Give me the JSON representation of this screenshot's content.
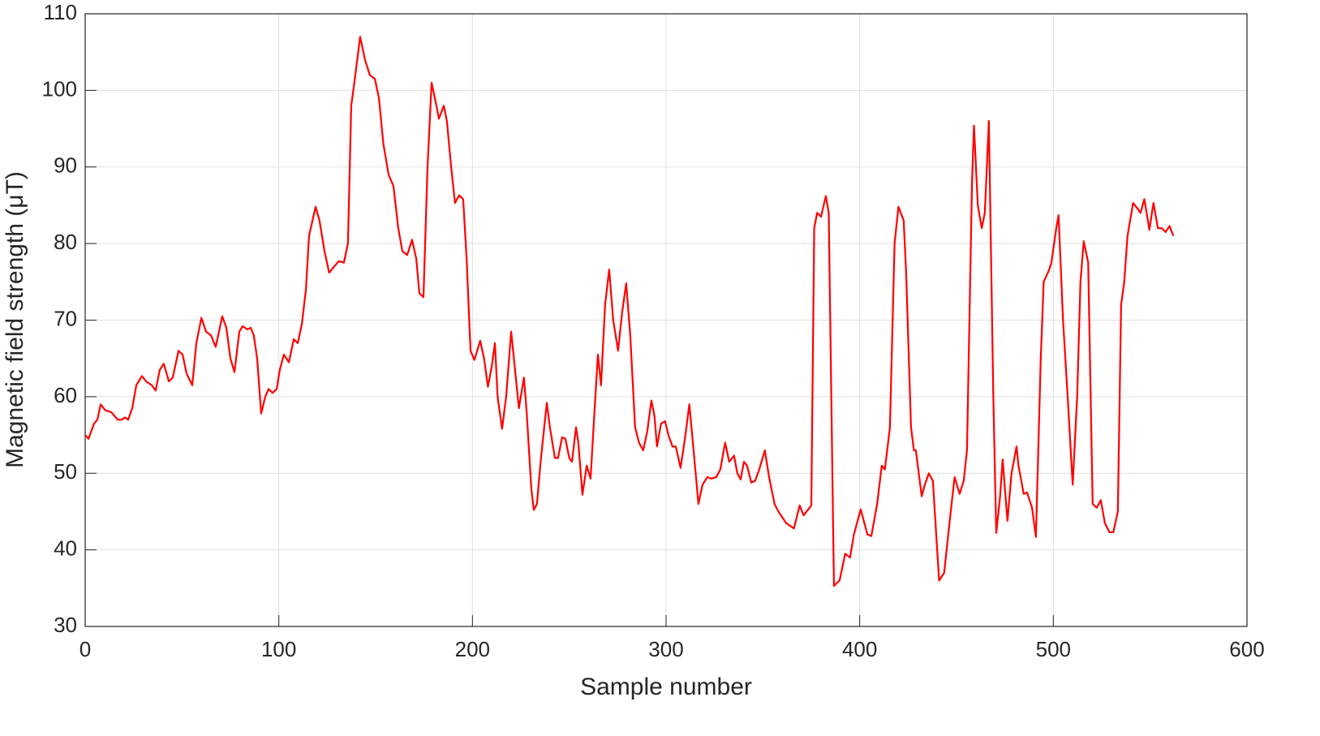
{
  "chart_data": {
    "type": "line",
    "xlabel": "Sample number",
    "ylabel": "Magnetic field strength (μT)",
    "color": "#ff0000",
    "grid": true,
    "xlim": [
      0,
      600
    ],
    "xticks": [
      0,
      100,
      200,
      300,
      400,
      500,
      600
    ],
    "ylim": [
      30,
      110
    ],
    "yticks": [
      30,
      40,
      50,
      60,
      70,
      80,
      90,
      100,
      110
    ],
    "x": [
      0,
      1.7,
      4.6,
      6.3,
      8,
      10.5,
      13.4,
      16.8,
      18.9,
      20.5,
      22.2,
      24.3,
      26.4,
      29.3,
      31.4,
      34.4,
      36.4,
      38.5,
      40.6,
      43.2,
      45.2,
      48.2,
      50.3,
      52.4,
      55.3,
      57.4,
      60,
      62.4,
      65,
      67.4,
      70.8,
      72.9,
      75,
      77.1,
      79.6,
      81.3,
      83.8,
      85.5,
      87.1,
      88.8,
      90.9,
      93,
      94.7,
      96.8,
      98.9,
      100.5,
      102.6,
      105.2,
      107.7,
      109.8,
      111.9,
      114,
      115.6,
      119,
      121,
      123.6,
      126,
      128.6,
      131,
      133.6,
      135.7,
      137.4,
      139,
      142,
      144.5,
      147,
      149.6,
      151.7,
      154,
      156.7,
      159.2,
      161.7,
      163.8,
      166.3,
      168.8,
      171,
      172.6,
      174.7,
      176.8,
      178.9,
      181.4,
      182.7,
      185.2,
      186.8,
      189,
      191,
      193.1,
      195.2,
      197,
      199,
      201,
      204,
      206,
      208,
      210,
      211.6,
      213,
      215.3,
      217.4,
      220,
      221,
      224,
      226.6,
      228,
      230.4,
      231.7,
      233.3,
      235.4,
      238.4,
      240,
      242.6,
      244.2,
      246.3,
      248,
      250,
      251.4,
      253.5,
      254.7,
      256.8,
      259,
      261,
      263,
      264.8,
      266.4,
      268.5,
      270.6,
      272.7,
      275.2,
      277.3,
      279.4,
      281.5,
      284,
      286,
      288.2,
      290.3,
      292.4,
      294,
      295.3,
      297.4,
      299.5,
      301.2,
      303.3,
      305,
      307.5,
      310,
      312,
      314.2,
      316.7,
      318.8,
      321.3,
      323.4,
      325.9,
      328,
      330.5,
      332.6,
      335.1,
      336.8,
      338.5,
      340.2,
      341.8,
      344,
      346,
      348.1,
      351,
      353.2,
      356,
      358,
      362,
      366,
      369,
      371,
      375,
      376.5,
      378,
      380,
      382.5,
      384,
      386.7,
      389.6,
      392.5,
      395,
      397,
      400.5,
      404,
      406,
      409,
      411.4,
      413,
      415.6,
      418,
      420,
      422.7,
      424,
      426.5,
      428,
      429,
      432,
      433.6,
      435.7,
      437.8,
      440,
      441,
      443.6,
      447,
      449,
      451.6,
      453.7,
      455.4,
      458,
      459,
      461,
      463,
      464.6,
      466.7,
      469,
      470.5,
      472.5,
      473.8,
      476.3,
      478.4,
      481,
      482,
      484.7,
      486.4,
      489,
      491,
      493.5,
      495,
      497.7,
      499,
      501.5,
      502.7,
      505,
      507.4,
      510,
      512.3,
      514,
      515.7,
      518,
      520.3,
      522.4,
      524.5,
      526.6,
      529,
      531,
      533.3,
      535,
      536.6,
      538.3,
      541.2,
      543.7,
      545,
      547,
      549.6,
      551.7,
      554,
      556,
      558,
      560,
      562
    ],
    "values": [
      55,
      54.5,
      56.5,
      57,
      59,
      58.2,
      58,
      57,
      57,
      57.3,
      57,
      58.5,
      61.5,
      62.7,
      62,
      61.5,
      60.8,
      63.5,
      64.3,
      62,
      62.5,
      66,
      65.5,
      63,
      61.5,
      67,
      70.3,
      68.5,
      68,
      66.5,
      70.5,
      69,
      65,
      63.2,
      68.5,
      69.2,
      68.8,
      69,
      68,
      65,
      57.8,
      60,
      61,
      60.5,
      61,
      63.5,
      65.5,
      64.5,
      67.5,
      67,
      69.5,
      74,
      81,
      84.8,
      83,
      79,
      76.2,
      77,
      77.7,
      77.5,
      80,
      98,
      101,
      107,
      104,
      102,
      101.5,
      99,
      93,
      89,
      87.5,
      82,
      79,
      78.5,
      80.5,
      78,
      73.5,
      73,
      90,
      101,
      98,
      96.3,
      98,
      96,
      90,
      85.3,
      86.3,
      85.8,
      78,
      66,
      64.8,
      67.3,
      65,
      61.3,
      64,
      67,
      60,
      55.8,
      60,
      68.5,
      66,
      58.5,
      62.5,
      58,
      48,
      45.2,
      46,
      52,
      59.2,
      56,
      52,
      52,
      54.7,
      54.5,
      52,
      51.5,
      56,
      54,
      47.2,
      51,
      49.3,
      58,
      65.5,
      61.5,
      72,
      76.6,
      70,
      66,
      71,
      74.8,
      68,
      56,
      54,
      53,
      55.5,
      59.5,
      57.5,
      53.5,
      56.5,
      56.8,
      55,
      53.5,
      53.5,
      50.7,
      55,
      59,
      53,
      46,
      48.5,
      49.5,
      49.3,
      49.5,
      50.5,
      54,
      51.5,
      52.3,
      50,
      49.2,
      51.5,
      51,
      48.8,
      49,
      50.5,
      53,
      49.5,
      46,
      45,
      43.5,
      42.8,
      45.8,
      44.5,
      45.8,
      82,
      84,
      83.5,
      86.2,
      84,
      35.3,
      36,
      39.5,
      39,
      42,
      45.3,
      42,
      41.8,
      46,
      51,
      50.5,
      56,
      80,
      84.8,
      83,
      76,
      56,
      53,
      53,
      47,
      48.5,
      50,
      49,
      40,
      36,
      37,
      45,
      49.5,
      47.3,
      49,
      53,
      88,
      95.4,
      85,
      82,
      84,
      96,
      60,
      42.2,
      47,
      51.8,
      43.8,
      50,
      53.5,
      51,
      47.3,
      47.5,
      45.5,
      41.7,
      65,
      75,
      76.5,
      77.5,
      82,
      83.7,
      70,
      60,
      48.5,
      60,
      75,
      80.3,
      77.5,
      46,
      45.5,
      46.5,
      43.5,
      42.3,
      42.3,
      45,
      72,
      75,
      81,
      85.3,
      84.5,
      84,
      85.8,
      81.8,
      85.3,
      82,
      82,
      81.5,
      82.3,
      81
    ]
  }
}
